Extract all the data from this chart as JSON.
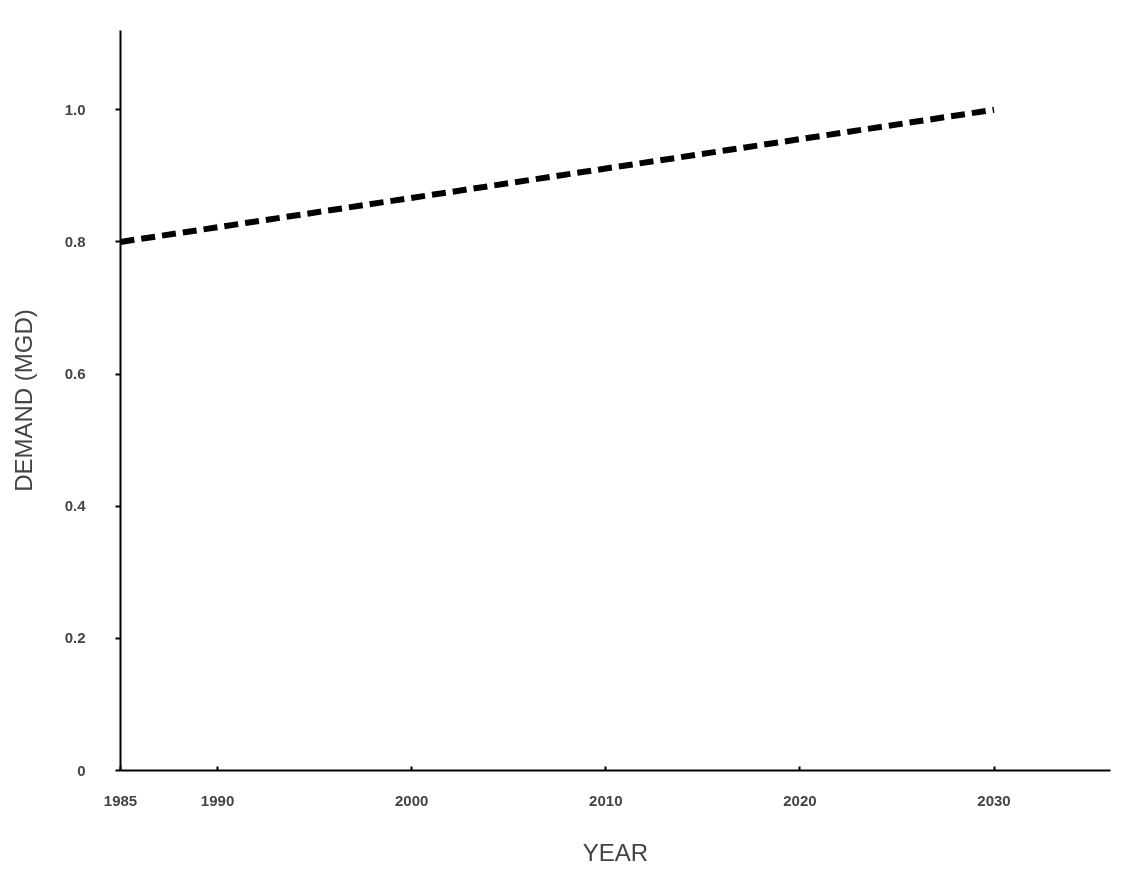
{
  "chart_data": {
    "type": "line",
    "xlabel": "YEAR",
    "ylabel": "DEMAND (MGD)",
    "x": [
      1985,
      2030
    ],
    "series": [
      {
        "color": "#000000",
        "values": [
          0.8,
          1.0
        ]
      }
    ],
    "line_style": "dashed",
    "marker": "none",
    "xlim": [
      1985,
      2036
    ],
    "ylim": [
      0,
      1.12
    ],
    "xticks": [
      1985,
      1990,
      2000,
      2010,
      2020,
      2030
    ],
    "yticks": [
      0,
      0.2,
      0.4,
      0.6,
      0.8,
      {
        "value": 1,
        "label": "1.0"
      }
    ]
  }
}
